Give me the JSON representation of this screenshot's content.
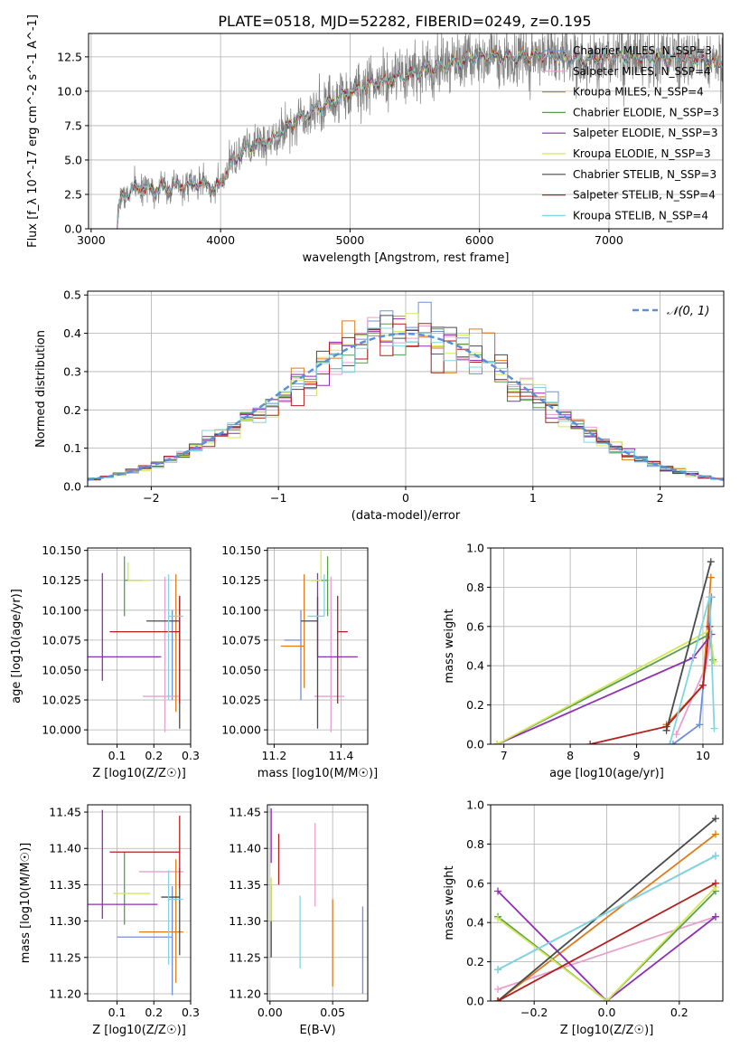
{
  "figure_title": "PLATE=0518, MJD=52282, FIBERID=0249, z=0.195",
  "models": [
    {
      "name": "Chabrier MILES, N_SSP=3",
      "color": "#6f8fd9"
    },
    {
      "name": "Salpeter MILES, N_SSP=4",
      "color": "#e8a0cf"
    },
    {
      "name": "Kroupa MILES, N_SSP=4",
      "color": "#e07b1a"
    },
    {
      "name": "Chabrier ELODIE, N_SSP=3",
      "color": "#5a9e4f"
    },
    {
      "name": "Salpeter ELODIE, N_SSP=3",
      "color": "#8e2fb6"
    },
    {
      "name": "Kroupa ELODIE, N_SSP=3",
      "color": "#d4e85a"
    },
    {
      "name": "Chabrier STELIB, N_SSP=3",
      "color": "#4a4a4a"
    },
    {
      "name": "Salpeter STELIB, N_SSP=4",
      "color": "#b41e1e"
    },
    {
      "name": "Kroupa STELIB, N_SSP=4",
      "color": "#7fd6e0"
    }
  ],
  "chart_data": [
    {
      "type": "line",
      "xlabel": "wavelength [Angstrom, rest frame]",
      "ylabel": "Flux [f_λ 10^-17 erg cm^-2 s^-1 A^-1]",
      "xlim": [
        2980,
        7880
      ],
      "ylim": [
        0,
        14.2
      ],
      "xticks": [
        3000,
        4000,
        5000,
        6000,
        7000
      ],
      "yticks": [
        0.0,
        2.5,
        5.0,
        7.5,
        10.0,
        12.5
      ],
      "legend": "top-right",
      "data_color": "#808080",
      "data_wave_range": [
        3200,
        7880
      ],
      "spectrum_shape": {
        "x": [
          3200,
          3220,
          3300,
          3400,
          3500,
          3600,
          3700,
          3800,
          3900,
          3960,
          4000,
          4100,
          4200,
          4300,
          4400,
          4500,
          4600,
          4700,
          4800,
          4900,
          5000,
          5200,
          5400,
          5600,
          5800,
          6000,
          6200,
          6400,
          6600,
          6800,
          7000,
          7200,
          7400,
          7600,
          7880
        ],
        "y": [
          0.0,
          2.0,
          2.8,
          3.0,
          2.9,
          3.0,
          3.1,
          3.3,
          3.2,
          2.9,
          3.2,
          5.0,
          5.8,
          6.2,
          6.5,
          7.3,
          8.0,
          8.5,
          9.0,
          9.4,
          10.0,
          10.6,
          11.0,
          11.6,
          12.0,
          12.6,
          12.4,
          12.6,
          12.6,
          12.2,
          12.5,
          12.5,
          12.4,
          12.4,
          12.0
        ]
      }
    },
    {
      "type": "histogram",
      "xlabel": "(data-model)/error",
      "ylabel": "Normed distribution",
      "xlim": [
        -2.5,
        2.5
      ],
      "ylim": [
        0,
        0.51
      ],
      "xticks": [
        -2,
        -1,
        0,
        1,
        2
      ],
      "yticks": [
        0.0,
        0.1,
        0.2,
        0.3,
        0.4,
        0.5
      ],
      "bin_width": 0.1,
      "legend": "top-right",
      "reference_label": "𝒩(0, 1)",
      "reference_color": "#5b8fd6"
    },
    {
      "type": "scatter",
      "xlabel": "Z [log10(Z/Z☉)]",
      "ylabel": "age  [log10(age/yr)]",
      "xlim": [
        0.02,
        0.3
      ],
      "ylim": [
        9.988,
        10.152
      ],
      "xticks": [
        0.1,
        0.2,
        0.3
      ],
      "yticks": [
        10.0,
        10.025,
        10.05,
        10.075,
        10.1,
        10.125,
        10.15
      ],
      "points": [
        {
          "x": 0.25,
          "y": 10.075,
          "xerr": [
            0.0,
            0.0
          ],
          "yerr": [
            0.05,
            0.025
          ],
          "c": 0
        },
        {
          "x": 0.23,
          "y": 10.028,
          "xerr": [
            0.06,
            0.04
          ],
          "yerr": [
            0.03,
            0.1
          ],
          "c": 1
        },
        {
          "x": 0.26,
          "y": 10.07,
          "xerr": [
            0.0,
            0.0
          ],
          "yerr": [
            0.055,
            0.06
          ],
          "c": 2
        },
        {
          "x": 0.12,
          "y": 10.125,
          "xerr": [
            0.0,
            0.05
          ],
          "yerr": [
            0.03,
            0.02
          ],
          "c": 3
        },
        {
          "x": 0.06,
          "y": 10.061,
          "xerr": [
            0.05,
            0.16
          ],
          "yerr": [
            0.02,
            0.07
          ],
          "c": 4
        },
        {
          "x": 0.13,
          "y": 10.125,
          "xerr": [
            0.0,
            0.06
          ],
          "yerr": [
            0.0,
            0.015
          ],
          "c": 5
        },
        {
          "x": 0.27,
          "y": 10.091,
          "xerr": [
            0.09,
            0.0
          ],
          "yerr": [
            0.09,
            0.02
          ],
          "c": 6
        },
        {
          "x": 0.27,
          "y": 10.082,
          "xerr": [
            0.19,
            0.0
          ],
          "yerr": [
            0.06,
            0.03
          ],
          "c": 7
        },
        {
          "x": 0.24,
          "y": 10.095,
          "xerr": [
            0.0,
            0.04
          ],
          "yerr": [
            0.07,
            0.035
          ],
          "c": 8
        }
      ]
    },
    {
      "type": "scatter",
      "xlabel": "mass [log10(M/M☉)]",
      "ylabel": "",
      "xlim": [
        11.18,
        11.48
      ],
      "ylim": [
        9.988,
        10.152
      ],
      "xticks": [
        11.2,
        11.4
      ],
      "yticks": [
        10.0,
        10.025,
        10.05,
        10.075,
        10.1,
        10.125,
        10.15
      ],
      "points": [
        {
          "x": 11.28,
          "y": 10.075,
          "xerr": [
            0.05,
            0.0
          ],
          "yerr": [
            0.05,
            0.025
          ],
          "c": 0
        },
        {
          "x": 11.37,
          "y": 10.028,
          "xerr": [
            0.05,
            0.04
          ],
          "yerr": [
            0.03,
            0.1
          ],
          "c": 1
        },
        {
          "x": 11.29,
          "y": 10.07,
          "xerr": [
            0.07,
            0.0
          ],
          "yerr": [
            0.035,
            0.06
          ],
          "c": 2
        },
        {
          "x": 11.36,
          "y": 10.125,
          "xerr": [
            0.05,
            0.0
          ],
          "yerr": [
            0.03,
            0.02
          ],
          "c": 3
        },
        {
          "x": 11.33,
          "y": 10.061,
          "xerr": [
            0.0,
            0.12
          ],
          "yerr": [
            0.0,
            0.07
          ],
          "c": 4
        },
        {
          "x": 11.34,
          "y": 10.125,
          "xerr": [
            0.04,
            0.0
          ],
          "yerr": [
            0.0,
            0.025
          ],
          "c": 5
        },
        {
          "x": 11.33,
          "y": 10.091,
          "xerr": [
            0.05,
            0.0
          ],
          "yerr": [
            0.09,
            0.02
          ],
          "c": 6
        },
        {
          "x": 11.39,
          "y": 10.082,
          "xerr": [
            0.0,
            0.03
          ],
          "yerr": [
            0.06,
            0.03
          ],
          "c": 7
        },
        {
          "x": 11.35,
          "y": 10.095,
          "xerr": [
            0.05,
            0.0
          ],
          "yerr": [
            0.0,
            0.035
          ],
          "c": 8
        }
      ]
    },
    {
      "type": "line",
      "xlabel": "age  [log10(age/yr)]",
      "ylabel": "mass weight",
      "xlim": [
        6.8,
        10.3
      ],
      "ylim": [
        0,
        1.0
      ],
      "xticks": [
        7,
        8,
        9,
        10
      ],
      "yticks": [
        0.0,
        0.2,
        0.4,
        0.6,
        0.8,
        1.0
      ],
      "series": [
        {
          "c": 0,
          "x": [
            9.55,
            9.95,
            10.13
          ],
          "y": [
            0.0,
            0.1,
            0.75
          ]
        },
        {
          "c": 1,
          "x": [
            9.6,
            10.05,
            10.1
          ],
          "y": [
            0.05,
            0.4,
            0.5
          ]
        },
        {
          "c": 2,
          "x": [
            9.45,
            10.0,
            10.12
          ],
          "y": [
            0.1,
            0.3,
            0.85
          ]
        },
        {
          "c": 3,
          "x": [
            6.9,
            10.1,
            10.15
          ],
          "y": [
            0.0,
            0.56,
            0.43
          ]
        },
        {
          "c": 4,
          "x": [
            6.9,
            9.85,
            10.13
          ],
          "y": [
            0.0,
            0.44,
            0.56
          ]
        },
        {
          "c": 5,
          "x": [
            6.9,
            10.1,
            10.17
          ],
          "y": [
            0.0,
            0.58,
            0.42
          ]
        },
        {
          "c": 6,
          "x": [
            9.45,
            10.12
          ],
          "y": [
            0.07,
            0.93
          ]
        },
        {
          "c": 7,
          "x": [
            8.3,
            9.45,
            10.0,
            10.1
          ],
          "y": [
            0.0,
            0.09,
            0.3,
            0.6
          ]
        },
        {
          "c": 8,
          "x": [
            9.5,
            10.1,
            10.17
          ],
          "y": [
            0.0,
            0.75,
            0.08
          ]
        }
      ]
    },
    {
      "type": "scatter",
      "xlabel": "Z [log10(Z/Z☉)]",
      "ylabel": "mass [log10(M/M☉)]",
      "xlim": [
        0.02,
        0.3
      ],
      "ylim": [
        11.19,
        11.46
      ],
      "xticks": [
        0.1,
        0.2,
        0.3
      ],
      "yticks": [
        11.2,
        11.25,
        11.3,
        11.35,
        11.4,
        11.45
      ],
      "points": [
        {
          "x": 0.25,
          "y": 11.278,
          "xerr": [
            0.15,
            0.0
          ],
          "yerr": [
            0.08,
            0.07
          ],
          "c": 0
        },
        {
          "x": 0.23,
          "y": 11.368,
          "xerr": [
            0.07,
            0.05
          ],
          "yerr": [
            0.0,
            0.0
          ],
          "c": 1
        },
        {
          "x": 0.26,
          "y": 11.285,
          "xerr": [
            0.1,
            0.02
          ],
          "yerr": [
            0.07,
            0.1
          ],
          "c": 2
        },
        {
          "x": 0.12,
          "y": 11.365,
          "xerr": [
            0.0,
            0.0
          ],
          "yerr": [
            0.07,
            0.03
          ],
          "c": 3
        },
        {
          "x": 0.06,
          "y": 11.323,
          "xerr": [
            0.05,
            0.15
          ],
          "yerr": [
            0.02,
            0.13
          ],
          "c": 4
        },
        {
          "x": 0.13,
          "y": 11.338,
          "xerr": [
            0.04,
            0.06
          ],
          "yerr": [
            0.0,
            0.0
          ],
          "c": 5
        },
        {
          "x": 0.27,
          "y": 11.333,
          "xerr": [
            0.05,
            0.0
          ],
          "yerr": [
            0.08,
            0.04
          ],
          "c": 6
        },
        {
          "x": 0.27,
          "y": 11.395,
          "xerr": [
            0.19,
            0.0
          ],
          "yerr": [
            0.05,
            0.05
          ],
          "c": 7
        },
        {
          "x": 0.24,
          "y": 11.33,
          "xerr": [
            0.0,
            0.04
          ],
          "yerr": [
            0.09,
            0.04
          ],
          "c": 8
        }
      ]
    },
    {
      "type": "scatter",
      "xlabel": "E(B-V)",
      "ylabel": "",
      "xlim": [
        -0.002,
        0.078
      ],
      "ylim": [
        11.19,
        11.46
      ],
      "xticks": [
        0.0,
        0.05
      ],
      "yticks": [
        11.2,
        11.25,
        11.3,
        11.35,
        11.4,
        11.45
      ],
      "points": [
        {
          "x": 0.074,
          "y": 11.26,
          "xerr": [
            0.0,
            0.0
          ],
          "yerr": [
            0.06,
            0.06
          ],
          "c": 0
        },
        {
          "x": 0.036,
          "y": 11.38,
          "xerr": [
            0.0,
            0.0
          ],
          "yerr": [
            0.06,
            0.055
          ],
          "c": 1
        },
        {
          "x": 0.05,
          "y": 11.27,
          "xerr": [
            0.0,
            0.0
          ],
          "yerr": [
            0.06,
            0.06
          ],
          "c": 2
        },
        {
          "x": 0.024,
          "y": 11.285,
          "xerr": [
            0.0,
            0.0
          ],
          "yerr": [
            0.05,
            0.05
          ],
          "c": 8
        },
        {
          "x": 0.007,
          "y": 11.395,
          "xerr": [
            0.0,
            0.0
          ],
          "yerr": [
            0.045,
            0.025
          ],
          "c": 7
        },
        {
          "x": 0.001,
          "y": 11.41,
          "xerr": [
            0.0,
            0.0
          ],
          "yerr": [
            0.03,
            0.045
          ],
          "c": 4
        },
        {
          "x": 0.001,
          "y": 11.3,
          "xerr": [
            0.0,
            0.0
          ],
          "yerr": [
            0.05,
            0.05
          ],
          "c": 6
        },
        {
          "x": 0.001,
          "y": 11.33,
          "xerr": [
            0.0,
            0.0
          ],
          "yerr": [
            0.03,
            0.03
          ],
          "c": 5
        }
      ]
    },
    {
      "type": "line",
      "xlabel": "Z [log10(Z/Z☉)]",
      "ylabel": "mass weight",
      "xlim": [
        -0.32,
        0.32
      ],
      "ylim": [
        0,
        1.0
      ],
      "xticks": [
        -0.2,
        0.0,
        0.2
      ],
      "yticks": [
        0.0,
        0.2,
        0.4,
        0.6,
        0.8,
        1.0
      ],
      "series": [
        {
          "c": 0,
          "x": [
            -0.3,
            0.3
          ],
          "y": [
            0.16,
            0.74
          ]
        },
        {
          "c": 1,
          "x": [
            -0.3,
            0.3
          ],
          "y": [
            0.06,
            0.43
          ]
        },
        {
          "c": 2,
          "x": [
            -0.3,
            0.3
          ],
          "y": [
            0.0,
            0.85
          ]
        },
        {
          "c": 3,
          "x": [
            -0.3,
            0.0,
            0.3
          ],
          "y": [
            0.43,
            0.0,
            0.56
          ]
        },
        {
          "c": 4,
          "x": [
            -0.3,
            0.0,
            0.3
          ],
          "y": [
            0.56,
            0.0,
            0.43
          ]
        },
        {
          "c": 5,
          "x": [
            -0.3,
            0.0,
            0.3
          ],
          "y": [
            0.42,
            0.0,
            0.58
          ]
        },
        {
          "c": 6,
          "x": [
            -0.3,
            0.3
          ],
          "y": [
            0.0,
            0.93
          ]
        },
        {
          "c": 7,
          "x": [
            -0.3,
            0.3
          ],
          "y": [
            0.0,
            0.6
          ]
        },
        {
          "c": 8,
          "x": [
            -0.3,
            0.3
          ],
          "y": [
            0.16,
            0.74
          ]
        }
      ]
    }
  ]
}
